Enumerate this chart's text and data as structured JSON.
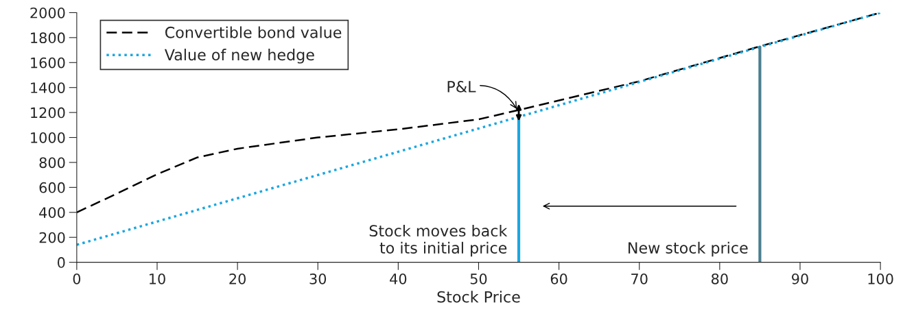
{
  "chart_data": {
    "type": "line",
    "xlabel": "Stock Price",
    "xlim": [
      0,
      100
    ],
    "ylim": [
      0,
      2000
    ],
    "xticks": [
      0,
      10,
      20,
      30,
      40,
      50,
      60,
      70,
      80,
      90,
      100
    ],
    "yticks": [
      0,
      200,
      400,
      600,
      800,
      1000,
      1200,
      1400,
      1600,
      1800,
      2000
    ],
    "grid": false,
    "legend": "top left",
    "series": [
      {
        "name": "Convertible bond value",
        "color": "#000000",
        "line_style": "dashed",
        "x": [
          0,
          5,
          10,
          15,
          20,
          30,
          40,
          50,
          55,
          70,
          85,
          100
        ],
        "values": [
          400,
          550,
          705,
          840,
          910,
          1000,
          1065,
          1145,
          1220,
          1450,
          1730,
          2000
        ]
      },
      {
        "name": "Value of new hedge",
        "color": "#1aa7e0",
        "line_style": "dotted",
        "x": [
          0,
          55,
          85,
          100
        ],
        "values": [
          140,
          1165,
          1725,
          2000
        ]
      },
      {
        "name": "Stock moves back\nto its initial price",
        "color": "#1aa7e0",
        "line_style": "solid",
        "x": [
          55,
          55
        ],
        "values": [
          0,
          1165
        ]
      },
      {
        "name": "New stock price",
        "color": "#4a7f8f",
        "line_style": "solid",
        "x": [
          85,
          85
        ],
        "values": [
          0,
          1725
        ]
      }
    ],
    "annotations": [
      {
        "text": "P&L",
        "x": 55,
        "y": 1200
      }
    ]
  }
}
